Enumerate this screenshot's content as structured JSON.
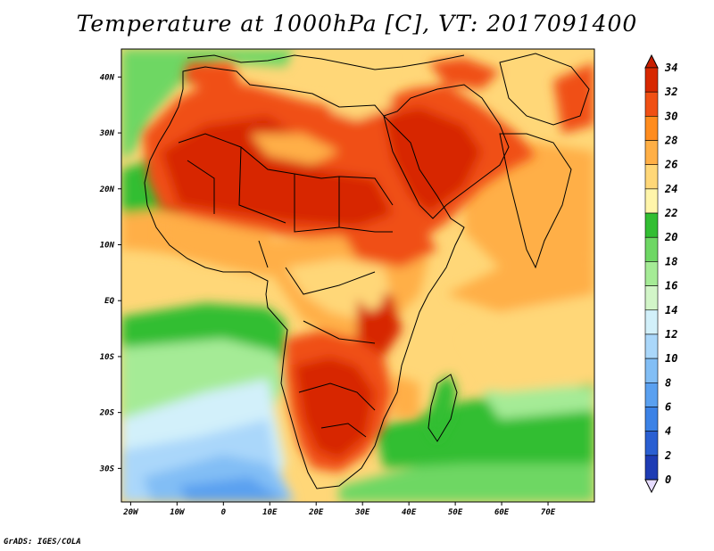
{
  "title": "Temperature at 1000hPa [C], VT: 2017091400",
  "footer": "GrADS: IGES/COLA",
  "map": {
    "lon_range": [
      -22,
      80
    ],
    "lat_range": [
      -36,
      45
    ],
    "lon_ticks": [
      {
        "value": -20,
        "label": "20W"
      },
      {
        "value": -10,
        "label": "10W"
      },
      {
        "value": 0,
        "label": "0"
      },
      {
        "value": 10,
        "label": "10E"
      },
      {
        "value": 20,
        "label": "20E"
      },
      {
        "value": 30,
        "label": "30E"
      },
      {
        "value": 40,
        "label": "40E"
      },
      {
        "value": 50,
        "label": "50E"
      },
      {
        "value": 60,
        "label": "60E"
      },
      {
        "value": 70,
        "label": "70E"
      }
    ],
    "lat_ticks": [
      {
        "value": 40,
        "label": "40N"
      },
      {
        "value": 30,
        "label": "30N"
      },
      {
        "value": 20,
        "label": "20N"
      },
      {
        "value": 10,
        "label": "10N"
      },
      {
        "value": 0,
        "label": "EQ"
      },
      {
        "value": -10,
        "label": "10S"
      },
      {
        "value": -20,
        "label": "20S"
      },
      {
        "value": -30,
        "label": "30S"
      }
    ]
  },
  "colorbar": {
    "levels": [
      0,
      2,
      4,
      6,
      8,
      10,
      12,
      14,
      16,
      18,
      20,
      22,
      24,
      26,
      28,
      30,
      32,
      34
    ],
    "colors": [
      "#1a1a8c",
      "#1e3cb4",
      "#2a5fd2",
      "#3c82e6",
      "#5aa0f0",
      "#82bef5",
      "#aad7fa",
      "#d2f0fa",
      "#d2f5c8",
      "#a5eb96",
      "#6ed764",
      "#32be32",
      "#fff5aa",
      "#ffd778",
      "#ffaf46",
      "#ff8c1e",
      "#f05014",
      "#d72800",
      "#c81e00"
    ]
  }
}
